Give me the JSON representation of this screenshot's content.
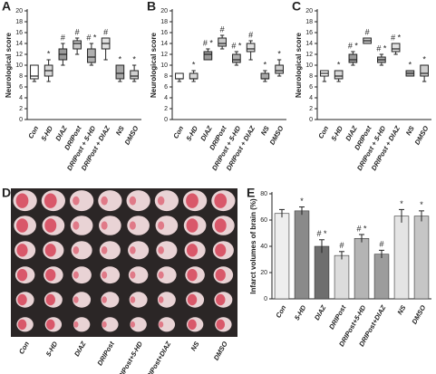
{
  "chart_data": [
    {
      "type": "box",
      "label": "A",
      "y_label": "Neurological score",
      "categories": [
        "Con",
        "5-HD",
        "DIAZ",
        "DRIPost",
        "DRIPost + 5-HD",
        "DRIPost + DIAZ",
        "NS",
        "DMSO"
      ],
      "boxes": [
        {
          "min": 7,
          "q1": 7.5,
          "median": 8,
          "q3": 10,
          "max": 10
        },
        {
          "min": 7,
          "q1": 8,
          "median": 9,
          "q3": 10,
          "max": 11
        },
        {
          "min": 10,
          "q1": 11,
          "median": 12,
          "q3": 13,
          "max": 14
        },
        {
          "min": 12,
          "q1": 13,
          "median": 14,
          "q3": 14.5,
          "max": 15
        },
        {
          "min": 10,
          "q1": 10.5,
          "median": 11.5,
          "q3": 13,
          "max": 14
        },
        {
          "min": 11,
          "q1": 13,
          "median": 14,
          "q3": 15,
          "max": 15
        },
        {
          "min": 7,
          "q1": 7.5,
          "median": 8.5,
          "q3": 10,
          "max": 10
        },
        {
          "min": 7,
          "q1": 7.5,
          "median": 8,
          "q3": 9,
          "max": 10
        }
      ],
      "annotations": [
        null,
        "*",
        "#",
        "#",
        "# *",
        "#",
        "*",
        "*"
      ],
      "colors": [
        "#ffffff",
        "#d8d8d8",
        "#9a9a9a",
        "#c8c8c8",
        "#b0b0b0",
        "#e0e0e0",
        "#a8a8a8",
        "#cfcfcf"
      ],
      "ylim": [
        0,
        20
      ],
      "yticks": [
        0,
        2,
        4,
        6,
        8,
        10,
        12,
        14,
        16,
        18,
        20
      ]
    },
    {
      "type": "box",
      "label": "B",
      "y_label": "Neurological score",
      "categories": [
        "Con",
        "5-HD",
        "DIAZ",
        "DRIPost",
        "DRIPost + 5-HD",
        "DRIPost + DIAZ",
        "NS",
        "DMSO"
      ],
      "boxes": [
        {
          "min": 7,
          "q1": 7.5,
          "median": 7.5,
          "q3": 8.5,
          "max": 8.5
        },
        {
          "min": 7,
          "q1": 7.5,
          "median": 7.5,
          "q3": 8.5,
          "max": 9
        },
        {
          "min": 11,
          "q1": 11,
          "median": 12,
          "q3": 12.5,
          "max": 13
        },
        {
          "min": 13,
          "q1": 13.5,
          "median": 14,
          "q3": 15,
          "max": 15.5
        },
        {
          "min": 10,
          "q1": 10.5,
          "median": 11,
          "q3": 12,
          "max": 12.5
        },
        {
          "min": 11,
          "q1": 12.5,
          "median": 13,
          "q3": 14,
          "max": 14.5
        },
        {
          "min": 7,
          "q1": 7.5,
          "median": 7.5,
          "q3": 8.5,
          "max": 9
        },
        {
          "min": 8,
          "q1": 8.5,
          "median": 9,
          "q3": 10,
          "max": 11
        }
      ],
      "annotations": [
        null,
        "*",
        "# *",
        "#",
        "# *",
        "#",
        "*",
        "*"
      ],
      "colors": [
        "#ffffff",
        "#d8d8d8",
        "#9a9a9a",
        "#c8c8c8",
        "#b0b0b0",
        "#e0e0e0",
        "#a8a8a8",
        "#cfcfcf"
      ],
      "ylim": [
        0,
        20
      ],
      "yticks": [
        0,
        2,
        4,
        6,
        8,
        10,
        12,
        14,
        16,
        18,
        20
      ]
    },
    {
      "type": "box",
      "label": "C",
      "y_label": "Neurological score",
      "categories": [
        "Con",
        "5-HD",
        "DIAZ",
        "DRIPost",
        "DRIPost + 5-HD",
        "DRIPost + DIAZ",
        "NS",
        "DMSO"
      ],
      "boxes": [
        {
          "min": 7,
          "q1": 8,
          "median": 8.5,
          "q3": 9,
          "max": 9
        },
        {
          "min": 7,
          "q1": 7.5,
          "median": 8,
          "q3": 9,
          "max": 9
        },
        {
          "min": 10,
          "q1": 10.5,
          "median": 11,
          "q3": 12,
          "max": 12.5
        },
        {
          "min": 14,
          "q1": 14,
          "median": 14.5,
          "q3": 15,
          "max": 15
        },
        {
          "min": 10,
          "q1": 10.5,
          "median": 11,
          "q3": 11.5,
          "max": 12
        },
        {
          "min": 12,
          "q1": 12.5,
          "median": 13,
          "q3": 14,
          "max": 14
        },
        {
          "min": 8,
          "q1": 8,
          "median": 8.5,
          "q3": 9,
          "max": 9
        },
        {
          "min": 7,
          "q1": 8,
          "median": 8.5,
          "q3": 10,
          "max": 10
        }
      ],
      "annotations": [
        null,
        "*",
        "# *",
        "#",
        "# *",
        "# *",
        "*",
        "*"
      ],
      "colors": [
        "#ffffff",
        "#d8d8d8",
        "#9a9a9a",
        "#c8c8c8",
        "#b0b0b0",
        "#e0e0e0",
        "#a8a8a8",
        "#cfcfcf"
      ],
      "ylim": [
        0,
        20
      ],
      "yticks": [
        0,
        2,
        4,
        6,
        8,
        10,
        12,
        14,
        16,
        18,
        20
      ]
    },
    {
      "type": "image",
      "label": "D",
      "categories": [
        "Con",
        "5-HD",
        "DIAZ",
        "DRIPost",
        "DRIPost+5-HD",
        "DRIPost+DIAZ",
        "NS",
        "DMSO"
      ]
    },
    {
      "type": "bar",
      "label": "E",
      "y_label": "Infarct volumes of brain (%)",
      "categories": [
        "Con",
        "5-HD",
        "DIAZ",
        "DRIPost",
        "DRIPost+5-HD",
        "DRIPost+DIAZ",
        "NS",
        "DMSO"
      ],
      "values": [
        65,
        67,
        40,
        33,
        46,
        34,
        63,
        63
      ],
      "errors": [
        3,
        3,
        5,
        3,
        3,
        3,
        5,
        4
      ],
      "annotations": [
        null,
        "*",
        "# *",
        "#",
        "# *",
        "#",
        "*",
        "*"
      ],
      "colors": [
        "#eeeeee",
        "#8a8a8a",
        "#6e6e6e",
        "#dcdcdc",
        "#b4b4b4",
        "#9c9c9c",
        "#e4e4e4",
        "#c6c6c6"
      ],
      "ylim": [
        0,
        80
      ],
      "yticks": [
        0,
        20,
        40,
        60,
        80
      ]
    }
  ]
}
